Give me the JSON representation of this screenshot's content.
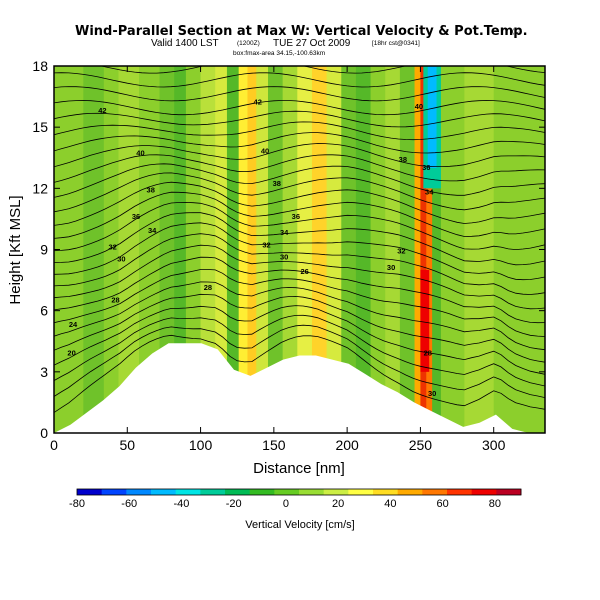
{
  "chart_data": {
    "type": "heatmap",
    "title": "Wind-Parallel Section at Max W: Vertical Velocity & Pot.Temp.",
    "title_mark": "(C)",
    "subtitle_main": "Valid 1400 LST",
    "subtitle_time": "(1200Z)",
    "subtitle_date": "TUE 27 Oct 2009",
    "subtitle_run": "[18hr cst@0341]",
    "info_line": "box:fmax-area 34.15,-100.63km",
    "xlabel": "Distance [nm]",
    "ylabel": "Height [Kft MSL]",
    "xlim": [
      0,
      335
    ],
    "ylim": [
      0,
      18
    ],
    "xticks": [
      "0",
      "50",
      "100",
      "150",
      "200",
      "250",
      "300"
    ],
    "yticks": [
      "0",
      "3",
      "6",
      "9",
      "12",
      "15",
      "18"
    ],
    "colorbar": {
      "label": "Vertical Velocity [cm/s]",
      "range": [
        -80,
        90
      ],
      "ticks": [
        "-80",
        "-60",
        "-40",
        "-20",
        "0",
        "20",
        "40",
        "60",
        "80"
      ],
      "colors": [
        "#0000cc",
        "#0044ff",
        "#0088ff",
        "#00bbff",
        "#00e5e5",
        "#00cc99",
        "#00bb55",
        "#33bb22",
        "#66cc22",
        "#99dd33",
        "#ccee44",
        "#ffff44",
        "#ffdd22",
        "#ffaa00",
        "#ff7700",
        "#ff3300",
        "#ee0000",
        "#bb0022"
      ]
    },
    "terrain_height_kft": [
      0,
      0.4,
      1,
      1.6,
      2.3,
      3.2,
      3.9,
      4.4,
      4.4,
      4.4,
      4.1,
      3.1,
      2.8,
      3.2,
      3.6,
      3.8,
      3.8,
      3.6,
      3.4,
      2.9,
      2.4,
      2.0,
      1.5,
      1.1,
      0.7,
      0.3,
      0.5,
      0.9,
      0.2,
      0,
      0
    ],
    "contour_labels": [
      {
        "text": "42",
        "x": 33,
        "y": 15.8
      },
      {
        "text": "40",
        "x": 59,
        "y": 13.7
      },
      {
        "text": "38",
        "x": 66,
        "y": 11.9
      },
      {
        "text": "36",
        "x": 56,
        "y": 10.6
      },
      {
        "text": "34",
        "x": 67,
        "y": 9.9
      },
      {
        "text": "32",
        "x": 40,
        "y": 9.1
      },
      {
        "text": "30",
        "x": 46,
        "y": 8.5
      },
      {
        "text": "28",
        "x": 42,
        "y": 6.5
      },
      {
        "text": "24",
        "x": 13,
        "y": 5.3
      },
      {
        "text": "20",
        "x": 12,
        "y": 3.9
      },
      {
        "text": "42",
        "x": 139,
        "y": 16.2
      },
      {
        "text": "40",
        "x": 144,
        "y": 13.8
      },
      {
        "text": "38",
        "x": 152,
        "y": 12.2
      },
      {
        "text": "36",
        "x": 165,
        "y": 10.6
      },
      {
        "text": "34",
        "x": 157,
        "y": 9.8
      },
      {
        "text": "32",
        "x": 145,
        "y": 9.2
      },
      {
        "text": "30",
        "x": 157,
        "y": 8.6
      },
      {
        "text": "28",
        "x": 105,
        "y": 7.1
      },
      {
        "text": "26",
        "x": 171,
        "y": 7.9
      },
      {
        "text": "40",
        "x": 249,
        "y": 16.0
      },
      {
        "text": "38",
        "x": 238,
        "y": 13.4
      },
      {
        "text": "36",
        "x": 254,
        "y": 13.0
      },
      {
        "text": "34",
        "x": 256,
        "y": 11.8
      },
      {
        "text": "32",
        "x": 237,
        "y": 8.9
      },
      {
        "text": "30",
        "x": 230,
        "y": 8.1
      },
      {
        "text": "28",
        "x": 255,
        "y": 3.9
      },
      {
        "text": "30",
        "x": 258,
        "y": 1.9
      }
    ]
  },
  "colors": {
    "background": "#ffffff",
    "terrain": "#ffffff",
    "field_base": "#8ccf2c"
  }
}
